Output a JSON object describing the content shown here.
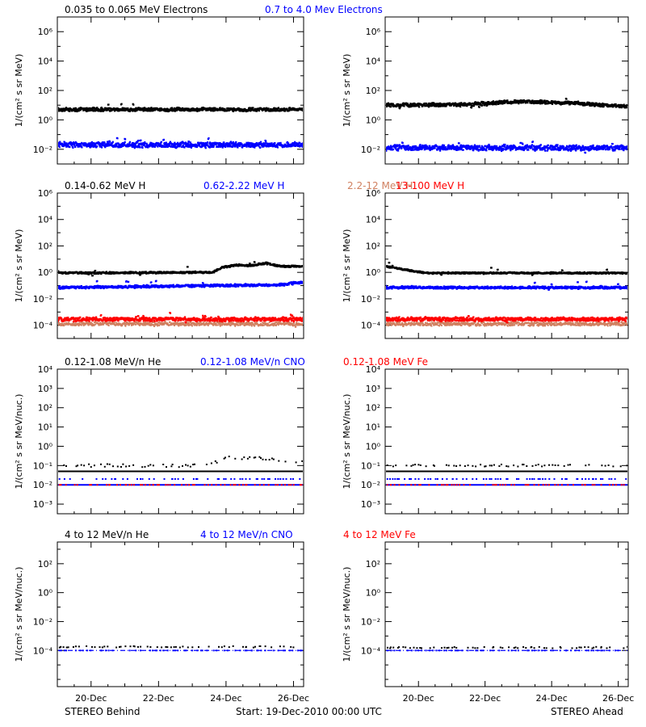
{
  "footer": {
    "left": "STEREO Behind",
    "center": "Start: 19-Dec-2010 00:00 UTC",
    "right": "STEREO Ahead"
  },
  "x_ticks": [
    "20-Dec",
    "22-Dec",
    "24-Dec",
    "26-Dec"
  ],
  "x_tick_days": [
    1,
    3,
    5,
    7
  ],
  "x_range_days": [
    0,
    7.3
  ],
  "chart_data": [
    {
      "type": "scatter",
      "row": 0,
      "spacecraft": "STEREO Behind",
      "title_segments": [
        {
          "text": "0.035 to 0.065 MeV Electrons",
          "color": "#000000"
        },
        {
          "text": "0.7 to 4.0 Mev Electrons",
          "color": "#0000ff"
        }
      ],
      "ylabel": "1/(cm² s sr MeV)",
      "log_ylim": [
        -3,
        7
      ],
      "log_yticks": [
        -2,
        0,
        2,
        4,
        6
      ],
      "series": [
        {
          "name": "0.035 to 0.065 MeV Electrons",
          "color": "#000000",
          "level": 0.7,
          "jitter": 0.1,
          "size": 2.2
        },
        {
          "name": "0.7 to 4.0 Mev Electrons",
          "color": "#0000ff",
          "level": -1.7,
          "jitter": 0.15,
          "size": 2.2
        }
      ]
    },
    {
      "type": "scatter",
      "row": 0,
      "spacecraft": "STEREO Ahead",
      "title_segments": [],
      "ylabel": "1/(cm² s sr MeV)",
      "log_ylim": [
        -3,
        7
      ],
      "log_yticks": [
        -2,
        0,
        2,
        4,
        6
      ],
      "series": [
        {
          "name": "0.035 to 0.065 MeV Electrons",
          "color": "#000000",
          "level": 1.0,
          "jitter": 0.1,
          "size": 2.2,
          "knots": [
            [
              0,
              1.0
            ],
            [
              2.5,
              1.05
            ],
            [
              4.0,
              1.25
            ],
            [
              5.5,
              1.15
            ],
            [
              7.3,
              0.9
            ]
          ]
        },
        {
          "name": "0.7 to 4.0 Mev Electrons",
          "color": "#0000ff",
          "level": -1.9,
          "jitter": 0.15,
          "size": 2.2
        }
      ]
    },
    {
      "type": "scatter",
      "row": 1,
      "spacecraft": "STEREO Behind",
      "title_segments": [
        {
          "text": "0.14-0.62 MeV H",
          "color": "#000000"
        },
        {
          "text": "0.62-2.22 MeV H",
          "color": "#0000ff"
        },
        {
          "text": "2.2-12 MeV H",
          "color": "#d08060"
        },
        {
          "text": "13-100 MeV H",
          "color": "#ff0000"
        }
      ],
      "ylabel": "1/(cm² s sr MeV)",
      "log_ylim": [
        -5,
        6
      ],
      "log_yticks": [
        -4,
        -2,
        0,
        2,
        4,
        6
      ],
      "series": [
        {
          "name": "0.14-0.62 MeV H",
          "color": "#000000",
          "level": -0.05,
          "jitter": 0.06,
          "size": 2.2,
          "knots": [
            [
              0,
              -0.05
            ],
            [
              4.6,
              0.0
            ],
            [
              4.9,
              0.4
            ],
            [
              5.3,
              0.55
            ],
            [
              5.7,
              0.5
            ],
            [
              6.2,
              0.7
            ],
            [
              6.6,
              0.45
            ],
            [
              7.3,
              0.45
            ]
          ]
        },
        {
          "name": "0.62-2.22 MeV H",
          "color": "#0000ff",
          "level": -1.15,
          "jitter": 0.08,
          "size": 2.2,
          "knots": [
            [
              0,
              -1.15
            ],
            [
              6.5,
              -0.95
            ],
            [
              7.3,
              -0.75
            ]
          ]
        },
        {
          "name": "2.2-12 MeV H",
          "color": "#d08060",
          "level": -3.9,
          "jitter": 0.12,
          "size": 1.8
        },
        {
          "name": "13-100 MeV H",
          "color": "#ff0000",
          "level": -3.55,
          "jitter": 0.12,
          "size": 2.2
        }
      ]
    },
    {
      "type": "scatter",
      "row": 1,
      "spacecraft": "STEREO Ahead",
      "title_segments": [],
      "ylabel": "1/(cm² s sr MeV)",
      "log_ylim": [
        -5,
        6
      ],
      "log_yticks": [
        -4,
        -2,
        0,
        2,
        4,
        6
      ],
      "series": [
        {
          "name": "0.14-0.62 MeV H",
          "color": "#000000",
          "level": -0.05,
          "jitter": 0.05,
          "size": 2.2,
          "knots": [
            [
              0,
              0.45
            ],
            [
              1.2,
              -0.05
            ],
            [
              7.3,
              -0.05
            ]
          ]
        },
        {
          "name": "0.62-2.22 MeV H",
          "color": "#0000ff",
          "level": -1.15,
          "jitter": 0.08,
          "size": 2.2
        },
        {
          "name": "2.2-12 MeV H",
          "color": "#d08060",
          "level": -3.9,
          "jitter": 0.12,
          "size": 1.8
        },
        {
          "name": "13-100 MeV H",
          "color": "#ff0000",
          "level": -3.55,
          "jitter": 0.12,
          "size": 2.2
        }
      ]
    },
    {
      "type": "scatter",
      "row": 2,
      "spacecraft": "STEREO Behind",
      "title_segments": [
        {
          "text": "0.12-1.08 MeV/n He",
          "color": "#000000"
        },
        {
          "text": "0.12-1.08 MeV/n CNO",
          "color": "#0000ff"
        },
        {
          "text": "0.12-1.08 MeV Fe",
          "color": "#ff0000"
        }
      ],
      "ylabel": "1/(cm² s sr MeV/nuc.)",
      "log_ylim": [
        -3.5,
        4
      ],
      "log_yticks": [
        -3,
        -2,
        -1,
        0,
        1,
        2,
        3,
        4
      ],
      "series": [
        {
          "name": "0.12-1.08 MeV/n He",
          "color": "#000000",
          "level": -1.0,
          "jitter": 0.08,
          "size": 2,
          "sparse": true,
          "knots": [
            [
              0,
              -1.0
            ],
            [
              4.5,
              -1.0
            ],
            [
              5.0,
              -0.6
            ],
            [
              5.8,
              -0.6
            ],
            [
              7.3,
              -0.8
            ]
          ]
        },
        {
          "name": "0.12-1.08 MeV/n CNO",
          "color": "#0000ff",
          "level": -1.7,
          "jitter": 0.0,
          "size": 2,
          "sparse": true
        },
        {
          "name": "0.12-1.08 MeV Fe",
          "color": "#ff0000",
          "level": -2.0,
          "jitter": 0.0,
          "size": 2,
          "sparse": true
        }
      ],
      "hlines": [
        {
          "level": -1.3,
          "color": "#000000"
        },
        {
          "level": -2.0,
          "color": "#0000ff"
        }
      ]
    },
    {
      "type": "scatter",
      "row": 2,
      "spacecraft": "STEREO Ahead",
      "title_segments": [],
      "ylabel": "1/(cm² s sr MeV/nuc.)",
      "log_ylim": [
        -3.5,
        4
      ],
      "log_yticks": [
        -3,
        -2,
        -1,
        0,
        1,
        2,
        3,
        4
      ],
      "series": [
        {
          "name": "0.12-1.08 MeV/n He",
          "color": "#000000",
          "level": -1.0,
          "jitter": 0.06,
          "size": 2,
          "sparse": true
        },
        {
          "name": "0.12-1.08 MeV/n CNO",
          "color": "#0000ff",
          "level": -1.7,
          "jitter": 0.0,
          "size": 2,
          "sparse": true
        },
        {
          "name": "0.12-1.08 MeV Fe",
          "color": "#ff0000",
          "level": -2.0,
          "jitter": 0.0,
          "size": 2,
          "sparse": true
        }
      ],
      "hlines": [
        {
          "level": -1.3,
          "color": "#000000"
        },
        {
          "level": -2.0,
          "color": "#0000ff"
        }
      ]
    },
    {
      "type": "scatter",
      "row": 3,
      "spacecraft": "STEREO Behind",
      "title_segments": [
        {
          "text": "4 to 12 MeV/n He",
          "color": "#000000"
        },
        {
          "text": "4 to 12 MeV/n CNO",
          "color": "#0000ff"
        },
        {
          "text": "4 to 12 MeV Fe",
          "color": "#ff0000"
        }
      ],
      "ylabel": "1/(cm² s sr MeV/nuc.)",
      "log_ylim": [
        -6.5,
        3.5
      ],
      "log_yticks": [
        -4,
        -2,
        0,
        2
      ],
      "series": [
        {
          "name": "4 to 12 MeV/n He",
          "color": "#000000",
          "level": -3.75,
          "jitter": 0.05,
          "size": 2,
          "sparse": true
        },
        {
          "name": "4 to 12 MeV/n CNO",
          "color": "#0000ff",
          "level": -4.0,
          "jitter": 0.0,
          "size": 2,
          "sparse": true
        }
      ],
      "hlines": [
        {
          "level": -4.0,
          "color": "#0000ff",
          "dashed": true
        }
      ]
    },
    {
      "type": "scatter",
      "row": 3,
      "spacecraft": "STEREO Ahead",
      "title_segments": [],
      "ylabel": "1/(cm² s sr MeV/nuc.)",
      "log_ylim": [
        -6.5,
        3.5
      ],
      "log_yticks": [
        -4,
        -2,
        0,
        2
      ],
      "series": [
        {
          "name": "4 to 12 MeV/n He",
          "color": "#000000",
          "level": -3.8,
          "jitter": 0.05,
          "size": 2,
          "sparse": true
        },
        {
          "name": "4 to 12 MeV/n CNO",
          "color": "#0000ff",
          "level": -4.0,
          "jitter": 0.0,
          "size": 2,
          "sparse": true
        }
      ],
      "hlines": [
        {
          "level": -4.0,
          "color": "#0000ff",
          "dashed": true
        }
      ]
    }
  ]
}
